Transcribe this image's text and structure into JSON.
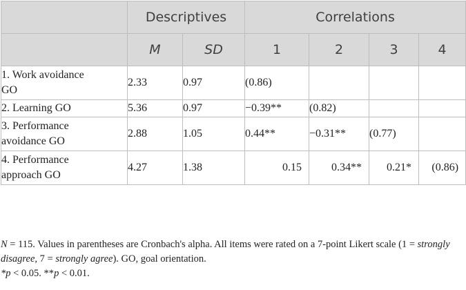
{
  "header": {
    "group_descriptives": "Descriptives",
    "group_correlations": "Correlations",
    "col_m": "M",
    "col_sd": "SD",
    "col_1": "1",
    "col_2": "2",
    "col_3": "3",
    "col_4": "4"
  },
  "rows": [
    {
      "label": "1. Work avoidance GO",
      "m": "2.33",
      "sd": "0.97",
      "c1": "(0.86)",
      "c2": "",
      "c3": "",
      "c4": ""
    },
    {
      "label": "2. Learning GO",
      "m": "5.36",
      "sd": "0.97",
      "c1": "−0.39**",
      "c2": "(0.82)",
      "c3": "",
      "c4": ""
    },
    {
      "label": "3. Performance avoidance GO",
      "m": "2.88",
      "sd": "1.05",
      "c1": "0.44**",
      "c2": "−0.31**",
      "c3": "(0.77)",
      "c4": ""
    },
    {
      "label": "4. Performance approach GO",
      "m": "4.27",
      "sd": "1.38",
      "c1": "0.15",
      "c2": "0.34**",
      "c3": "0.21*",
      "c4": "(0.86)"
    }
  ],
  "notes": {
    "n_part": "N",
    "n_value": " = 115. Values in parentheses are Cronbach's alpha. All items were rated on a 7-point Likert scale (1 = ",
    "strongly_disagree": "strongly disagree",
    "mid": ", 7 = ",
    "strongly_agree": "strongly agree",
    "end": "). GO, goal orientation.",
    "sig_line_a": "*p",
    "sig_line_b": " < 0.05. **",
    "sig_line_c": "p",
    "sig_line_d": " < 0.01."
  }
}
